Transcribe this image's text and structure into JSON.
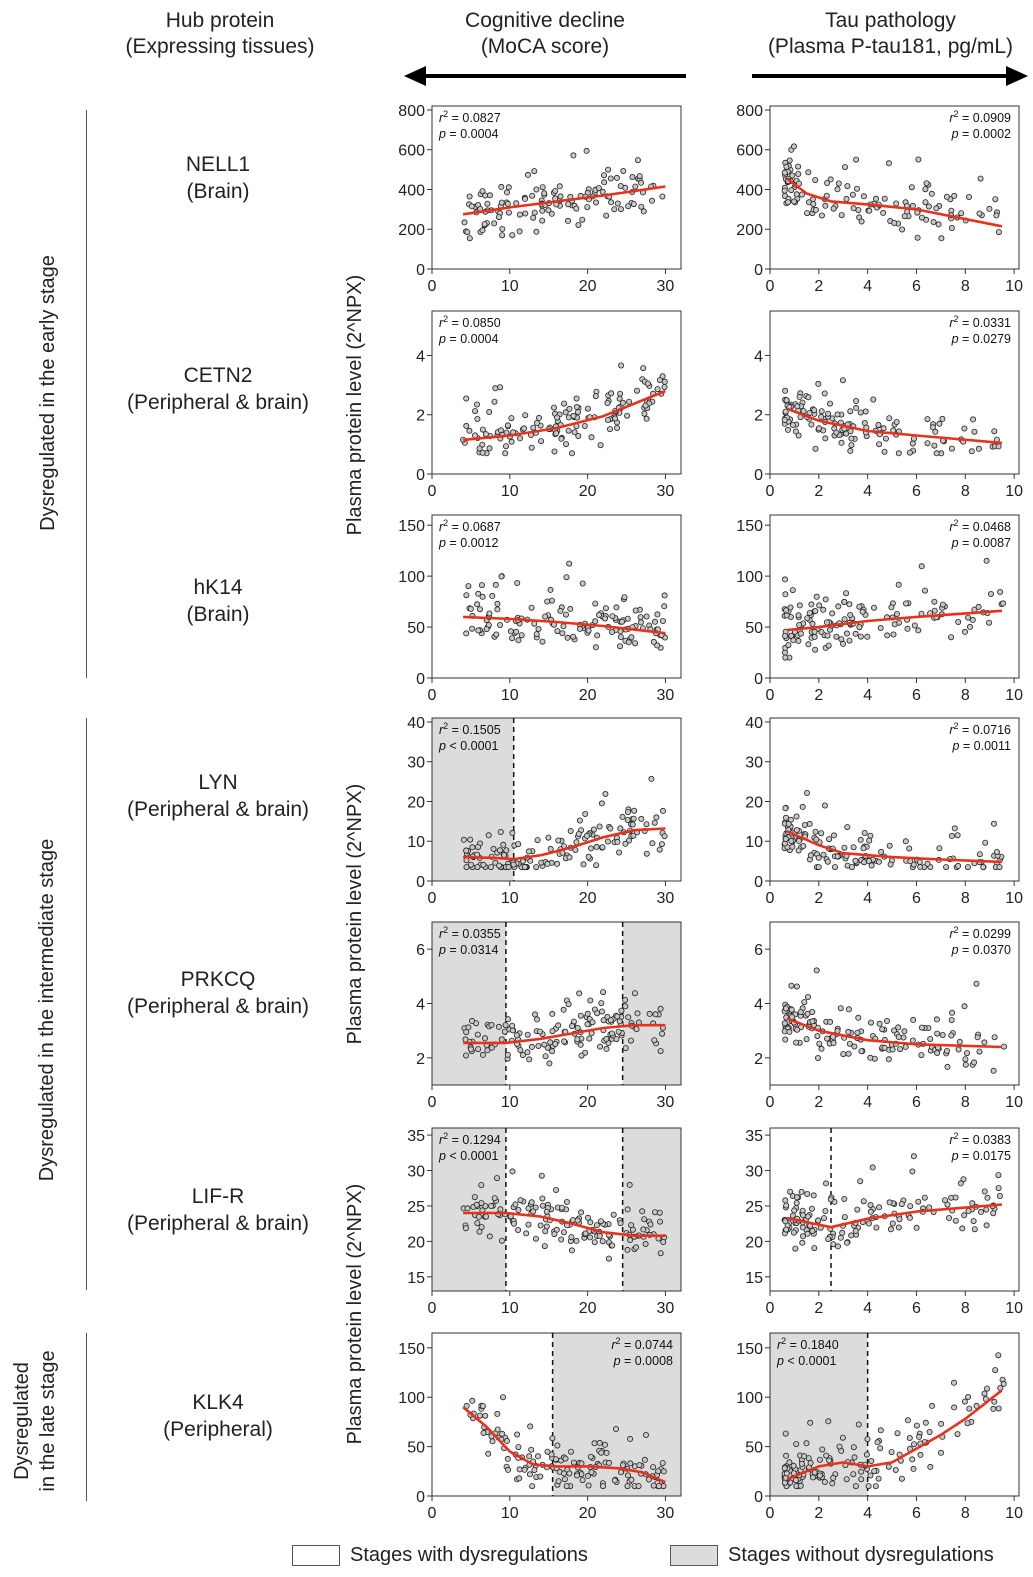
{
  "headers": {
    "hub": [
      "Hub protein",
      "(Expressing tissues)"
    ],
    "cog": [
      "Cognitive decline",
      "(MoCA score)"
    ],
    "tau": [
      "Tau pathology",
      "(Plasma P-tau181, pg/mL)"
    ]
  },
  "stages": [
    "Dysregulated in the early stage",
    "Dysregulated in the intermediate stage",
    "Dysregulated",
    "in the late stage"
  ],
  "ylabels": [
    "Plasma protein level (2^NPX)",
    "Plasma protein level (2^NPX)",
    "Plasma protein level (2^NPX)"
  ],
  "proteins": [
    {
      "name": "NELL1",
      "tissue": "(Brain)"
    },
    {
      "name": "CETN2",
      "tissue": "(Peripheral & brain)"
    },
    {
      "name": "hK14",
      "tissue": "(Brain)"
    },
    {
      "name": "LYN",
      "tissue": "(Peripheral & brain)"
    },
    {
      "name": "PRKCQ",
      "tissue": "(Peripheral & brain)"
    },
    {
      "name": "LIF-R",
      "tissue": "(Peripheral & brain)"
    },
    {
      "name": "KLK4",
      "tissue": "(Peripheral)"
    }
  ],
  "legend": {
    "with": "Stages with dysregulations",
    "without": "Stages without dysregulations"
  },
  "colors": {
    "fit": "#e8321e",
    "shade": "#dcdcdc",
    "point": "#c8c8c8"
  },
  "chart_data": [
    {
      "type": "scatter",
      "panel": "cognitive",
      "protein": "NELL1",
      "xlim": [
        0,
        32
      ],
      "ylim": [
        0,
        820
      ],
      "yticks": [
        0,
        200,
        400,
        600,
        800
      ],
      "xticks": [
        0,
        10,
        20,
        30
      ],
      "r2": "0.0827",
      "p": "0.0004",
      "stat_pos": "left",
      "shade": [],
      "cuts": [],
      "fit": [
        [
          4,
          275
        ],
        [
          10,
          310
        ],
        [
          16,
          340
        ],
        [
          22,
          370
        ],
        [
          30,
          415
        ]
      ],
      "n": 130,
      "pmin": 100,
      "pmax": 750,
      "trend": "up"
    },
    {
      "type": "scatter",
      "panel": "tau",
      "protein": "NELL1",
      "xlim": [
        0,
        10.2
      ],
      "ylim": [
        0,
        820
      ],
      "yticks": [
        0,
        200,
        400,
        600,
        800
      ],
      "xticks": [
        0,
        2,
        4,
        6,
        8,
        10
      ],
      "r2": "0.0909",
      "p": "0.0002",
      "stat_pos": "right",
      "shade": [],
      "cuts": [],
      "fit": [
        [
          0.7,
          455
        ],
        [
          1.5,
          380
        ],
        [
          2.5,
          340
        ],
        [
          4,
          325
        ],
        [
          6,
          300
        ],
        [
          9.5,
          215
        ]
      ],
      "n": 130,
      "pmin": 90,
      "pmax": 750,
      "trend": "down"
    },
    {
      "type": "scatter",
      "panel": "cognitive",
      "protein": "CETN2",
      "xlim": [
        0,
        32
      ],
      "ylim": [
        0,
        5.5
      ],
      "yticks": [
        0,
        2,
        4
      ],
      "xticks": [
        0,
        10,
        20,
        30
      ],
      "r2": "0.0850",
      "p": "0.0004",
      "stat_pos": "left",
      "shade": [],
      "cuts": [],
      "fit": [
        [
          4,
          1.15
        ],
        [
          10,
          1.3
        ],
        [
          16,
          1.55
        ],
        [
          22,
          1.95
        ],
        [
          30,
          2.8
        ]
      ],
      "n": 140,
      "pmin": 0.7,
      "pmax": 5.1,
      "trend": "up"
    },
    {
      "type": "scatter",
      "panel": "tau",
      "protein": "CETN2",
      "xlim": [
        0,
        10.2
      ],
      "ylim": [
        0,
        5.5
      ],
      "yticks": [
        0,
        2,
        4
      ],
      "xticks": [
        0,
        2,
        4,
        6,
        8,
        10
      ],
      "r2": "0.0331",
      "p": "0.0279",
      "stat_pos": "right",
      "shade": [],
      "cuts": [],
      "fit": [
        [
          0.7,
          2.2
        ],
        [
          2,
          1.8
        ],
        [
          4,
          1.45
        ],
        [
          6,
          1.3
        ],
        [
          9.5,
          1.05
        ]
      ],
      "n": 140,
      "pmin": 0.7,
      "pmax": 4.7,
      "trend": "down"
    },
    {
      "type": "scatter",
      "panel": "cognitive",
      "protein": "hK14",
      "xlim": [
        0,
        32
      ],
      "ylim": [
        0,
        160
      ],
      "yticks": [
        0,
        50,
        100,
        150
      ],
      "xticks": [
        0,
        10,
        20,
        30
      ],
      "r2": "0.0687",
      "p": "0.0012",
      "stat_pos": "left",
      "shade": [],
      "cuts": [],
      "fit": [
        [
          4,
          60
        ],
        [
          10,
          58
        ],
        [
          16,
          55
        ],
        [
          22,
          51
        ],
        [
          30,
          44
        ]
      ],
      "n": 140,
      "pmin": 20,
      "pmax": 128,
      "trend": "down"
    },
    {
      "type": "scatter",
      "panel": "tau",
      "protein": "hK14",
      "xlim": [
        0,
        10.2
      ],
      "ylim": [
        0,
        160
      ],
      "yticks": [
        0,
        50,
        100,
        150
      ],
      "xticks": [
        0,
        2,
        4,
        6,
        8,
        10
      ],
      "r2": "0.0468",
      "p": "0.0087",
      "stat_pos": "right",
      "shade": [],
      "cuts": [],
      "fit": [
        [
          0.7,
          47
        ],
        [
          2,
          50
        ],
        [
          4,
          56
        ],
        [
          6,
          60
        ],
        [
          9.5,
          66
        ]
      ],
      "n": 140,
      "pmin": 20,
      "pmax": 128,
      "trend": "up"
    },
    {
      "type": "scatter",
      "panel": "cognitive",
      "protein": "LYN",
      "xlim": [
        0,
        32
      ],
      "ylim": [
        0,
        41
      ],
      "yticks": [
        0,
        10,
        20,
        30,
        40
      ],
      "xticks": [
        0,
        10,
        20,
        30
      ],
      "r2": "0.1505",
      "p": "< 0.0001",
      "stat_pos": "left",
      "shade": [
        [
          0,
          10.5
        ]
      ],
      "cuts": [
        10.5
      ],
      "fit": [
        [
          4,
          6
        ],
        [
          8,
          5.8
        ],
        [
          10.5,
          5.5
        ],
        [
          14,
          6.5
        ],
        [
          18,
          8.5
        ],
        [
          22,
          11
        ],
        [
          26,
          12.8
        ],
        [
          30,
          13.2
        ]
      ],
      "n": 150,
      "pmin": 3.5,
      "pmax": 37,
      "trend": "up"
    },
    {
      "type": "scatter",
      "panel": "tau",
      "protein": "LYN",
      "xlim": [
        0,
        10.2
      ],
      "ylim": [
        0,
        41
      ],
      "yticks": [
        0,
        10,
        20,
        30,
        40
      ],
      "xticks": [
        0,
        2,
        4,
        6,
        8,
        10
      ],
      "r2": "0.0716",
      "p": "0.0011",
      "stat_pos": "right",
      "shade": [],
      "cuts": [],
      "fit": [
        [
          0.7,
          12.5
        ],
        [
          2,
          9
        ],
        [
          3,
          7
        ],
        [
          5,
          6
        ],
        [
          7,
          5.4
        ],
        [
          9.5,
          4.8
        ]
      ],
      "n": 150,
      "pmin": 3.5,
      "pmax": 37,
      "trend": "down"
    },
    {
      "type": "scatter",
      "panel": "cognitive",
      "protein": "PRKCQ",
      "xlim": [
        0,
        32
      ],
      "ylim": [
        1,
        7
      ],
      "yticks": [
        2,
        4,
        6
      ],
      "xticks": [
        0,
        10,
        20,
        30
      ],
      "r2": "0.0355",
      "p": "0.0314",
      "stat_pos": "left",
      "shade": [
        [
          0,
          9.5
        ],
        [
          24.5,
          32
        ]
      ],
      "cuts": [
        9.5,
        24.5
      ],
      "fit": [
        [
          4,
          2.55
        ],
        [
          9.5,
          2.55
        ],
        [
          14,
          2.7
        ],
        [
          18,
          2.9
        ],
        [
          22,
          3.1
        ],
        [
          26,
          3.2
        ],
        [
          30,
          3.2
        ]
      ],
      "n": 150,
      "pmin": 1.5,
      "pmax": 6.6,
      "trend": "up"
    },
    {
      "type": "scatter",
      "panel": "tau",
      "protein": "PRKCQ",
      "xlim": [
        0,
        10.2
      ],
      "ylim": [
        1,
        7
      ],
      "yticks": [
        2,
        4,
        6
      ],
      "xticks": [
        0,
        2,
        4,
        6,
        8,
        10
      ],
      "r2": "0.0299",
      "p": "0.0370",
      "stat_pos": "right",
      "shade": [],
      "cuts": [],
      "fit": [
        [
          0.7,
          3.45
        ],
        [
          2,
          3.0
        ],
        [
          4,
          2.65
        ],
        [
          6,
          2.5
        ],
        [
          9.5,
          2.4
        ]
      ],
      "n": 150,
      "pmin": 1.5,
      "pmax": 6.6,
      "trend": "down"
    },
    {
      "type": "scatter",
      "panel": "cognitive",
      "protein": "LIF-R",
      "xlim": [
        0,
        32
      ],
      "ylim": [
        13,
        36
      ],
      "yticks": [
        15,
        20,
        25,
        30,
        35
      ],
      "xticks": [
        0,
        10,
        20,
        30
      ],
      "r2": "0.1294",
      "p": "< 0.0001",
      "stat_pos": "left",
      "shade": [
        [
          0,
          9.5
        ],
        [
          24.5,
          32
        ]
      ],
      "cuts": [
        9.5,
        24.5
      ],
      "fit": [
        [
          4,
          24
        ],
        [
          9.5,
          24
        ],
        [
          14,
          23.5
        ],
        [
          18,
          22.5
        ],
        [
          22,
          21.3
        ],
        [
          26,
          20.8
        ],
        [
          30,
          20.8
        ]
      ],
      "n": 150,
      "pmin": 16,
      "pmax": 32,
      "trend": "down"
    },
    {
      "type": "scatter",
      "panel": "tau",
      "protein": "LIF-R",
      "xlim": [
        0,
        10.2
      ],
      "ylim": [
        13,
        36
      ],
      "yticks": [
        15,
        20,
        25,
        30,
        35
      ],
      "xticks": [
        0,
        2,
        4,
        6,
        8,
        10
      ],
      "r2": "0.0383",
      "p": "0.0175",
      "stat_pos": "right",
      "shade": [],
      "cuts": [
        2.5
      ],
      "fit": [
        [
          0.7,
          23.3
        ],
        [
          1.8,
          22.5
        ],
        [
          2.5,
          22
        ],
        [
          4,
          23.2
        ],
        [
          6,
          24.2
        ],
        [
          9.5,
          25.2
        ]
      ],
      "n": 150,
      "pmin": 16,
      "pmax": 32,
      "trend": "up"
    },
    {
      "type": "scatter",
      "panel": "cognitive",
      "protein": "KLK4",
      "xlim": [
        0,
        32
      ],
      "ylim": [
        0,
        165
      ],
      "yticks": [
        0,
        50,
        100,
        150
      ],
      "xticks": [
        0,
        10,
        20,
        30
      ],
      "r2": "0.0744",
      "p": "0.0008",
      "stat_pos": "right",
      "shade": [
        [
          15.5,
          32
        ]
      ],
      "cuts": [
        15.5
      ],
      "fit": [
        [
          4,
          90
        ],
        [
          7,
          70
        ],
        [
          10,
          45
        ],
        [
          13,
          32
        ],
        [
          16,
          30
        ],
        [
          20,
          30
        ],
        [
          24,
          28
        ],
        [
          27,
          24
        ],
        [
          30,
          14
        ]
      ],
      "n": 150,
      "pmin": 10,
      "pmax": 160,
      "trend": "down"
    },
    {
      "type": "scatter",
      "panel": "tau",
      "protein": "KLK4",
      "xlim": [
        0,
        10.2
      ],
      "ylim": [
        0,
        165
      ],
      "yticks": [
        0,
        50,
        100,
        150
      ],
      "xticks": [
        0,
        2,
        4,
        6,
        8,
        10
      ],
      "r2": "0.1840",
      "p": "< 0.0001",
      "stat_pos": "left",
      "shade": [
        [
          0,
          4
        ]
      ],
      "cuts": [
        4
      ],
      "fit": [
        [
          0.7,
          17
        ],
        [
          2,
          30
        ],
        [
          3,
          34
        ],
        [
          4,
          30
        ],
        [
          5,
          34
        ],
        [
          6,
          48
        ],
        [
          7,
          62
        ],
        [
          8,
          78
        ],
        [
          9.5,
          107
        ]
      ],
      "n": 150,
      "pmin": 10,
      "pmax": 160,
      "trend": "up"
    }
  ]
}
